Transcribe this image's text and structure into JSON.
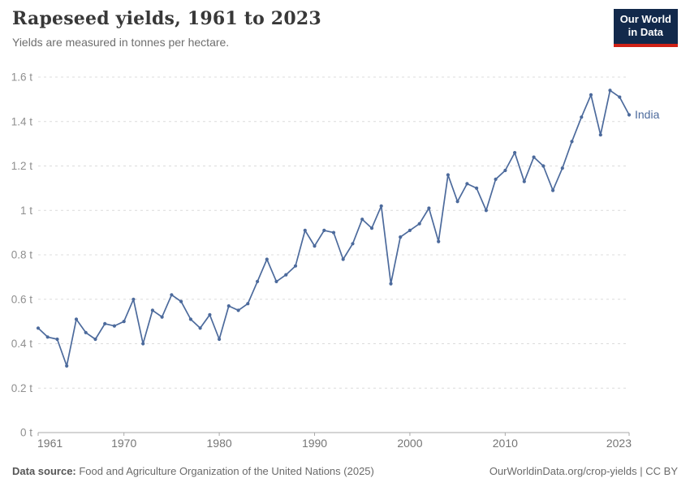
{
  "header": {
    "title": "Rapeseed yields, 1961 to 2023",
    "subtitle": "Yields are measured in tonnes per hectare."
  },
  "logo": {
    "line1": "Our World",
    "line2": "in Data"
  },
  "footer": {
    "data_source_label": "Data source:",
    "data_source_text": " Food and Agriculture Organization of the United Nations (2025)",
    "attribution": "OurWorldinData.org/crop-yields | CC BY"
  },
  "colors": {
    "series_line": "#4c6a9c",
    "series_label": "#4c6a9c",
    "gridline": "#dcdcdc",
    "axis_line": "#a8a8a8",
    "y_tick_label": "#8f8f8f",
    "x_tick_label": "#757575",
    "logo_navy": "#12294b",
    "logo_red": "#cf2116"
  },
  "chart_data": {
    "type": "line",
    "title": "Rapeseed yields, 1961 to 2023",
    "subtitle": "Yields are measured in tonnes per hectare.",
    "xlabel": "",
    "ylabel": "tonnes per hectare",
    "xlim": [
      1961,
      2023
    ],
    "ylim": [
      0,
      1.6
    ],
    "grid": true,
    "grid_style": "dashed-horizontal",
    "legend_position": "end-of-line",
    "unit": "t",
    "y_ticks": [
      {
        "value": 0,
        "label": "0 t"
      },
      {
        "value": 0.2,
        "label": "0.2 t"
      },
      {
        "value": 0.4,
        "label": "0.4 t"
      },
      {
        "value": 0.6,
        "label": "0.6 t"
      },
      {
        "value": 0.8,
        "label": "0.8 t"
      },
      {
        "value": 1,
        "label": "1 t"
      },
      {
        "value": 1.2,
        "label": "1.2 t"
      },
      {
        "value": 1.4,
        "label": "1.4 t"
      },
      {
        "value": 1.6,
        "label": "1.6 t"
      }
    ],
    "x_ticks": [
      {
        "year": 1961,
        "label": "1961"
      },
      {
        "year": 1970,
        "label": "1970"
      },
      {
        "year": 1980,
        "label": "1980"
      },
      {
        "year": 1990,
        "label": "1990"
      },
      {
        "year": 2000,
        "label": "2000"
      },
      {
        "year": 2010,
        "label": "2010"
      },
      {
        "year": 2023,
        "label": "2023"
      }
    ],
    "x": [
      1961,
      1962,
      1963,
      1964,
      1965,
      1966,
      1967,
      1968,
      1969,
      1970,
      1971,
      1972,
      1973,
      1974,
      1975,
      1976,
      1977,
      1978,
      1979,
      1980,
      1981,
      1982,
      1983,
      1984,
      1985,
      1986,
      1987,
      1988,
      1989,
      1990,
      1991,
      1992,
      1993,
      1994,
      1995,
      1996,
      1997,
      1998,
      1999,
      2000,
      2001,
      2002,
      2003,
      2004,
      2005,
      2006,
      2007,
      2008,
      2009,
      2010,
      2011,
      2012,
      2013,
      2014,
      2015,
      2016,
      2017,
      2018,
      2019,
      2020,
      2021,
      2022,
      2023
    ],
    "series": [
      {
        "name": "India",
        "values": [
          0.47,
          0.43,
          0.42,
          0.3,
          0.51,
          0.45,
          0.42,
          0.49,
          0.48,
          0.5,
          0.6,
          0.4,
          0.55,
          0.52,
          0.62,
          0.59,
          0.51,
          0.47,
          0.53,
          0.42,
          0.57,
          0.55,
          0.58,
          0.68,
          0.78,
          0.68,
          0.71,
          0.75,
          0.91,
          0.84,
          0.91,
          0.9,
          0.78,
          0.85,
          0.96,
          0.92,
          1.02,
          0.67,
          0.88,
          0.91,
          0.94,
          1.01,
          0.86,
          1.16,
          1.04,
          1.12,
          1.1,
          1.0,
          1.14,
          1.18,
          1.26,
          1.13,
          1.24,
          1.2,
          1.09,
          1.19,
          1.31,
          1.42,
          1.52,
          1.34,
          1.54,
          1.51,
          1.43
        ]
      }
    ]
  }
}
